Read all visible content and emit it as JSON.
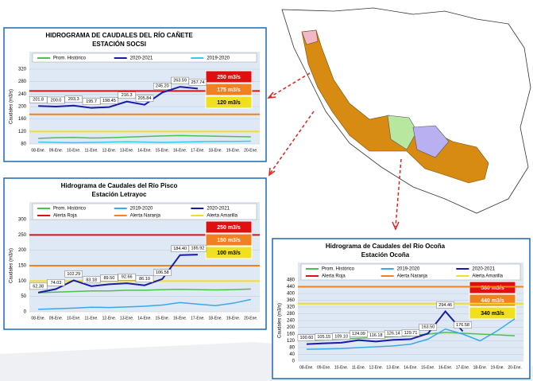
{
  "chart_data": [
    {
      "type": "line",
      "title": "HIDROGRAMA DE CAUDALES DEL RÍO CAÑETE",
      "subtitle": "ESTACIÓN SOCSI",
      "y_label": "Caudales (m3/s)",
      "categories": [
        "08-Ene.",
        "09-Ene.",
        "10-Ene.",
        "11-Ene.",
        "12-Ene.",
        "13-Ene.",
        "14-Ene.",
        "15-Ene.",
        "16-Ene.",
        "17-Ene.",
        "18-Ene.",
        "19-Ene.",
        "20-Ene."
      ],
      "ylim": [
        80,
        320
      ],
      "yticks": [
        80,
        120,
        160,
        200,
        240,
        280,
        320
      ],
      "grid": true,
      "series": [
        {
          "name": "Prom. Histórico",
          "color": "#4cc04c",
          "values": [
            98,
            100,
            101,
            99,
            100,
            102,
            104,
            106,
            107,
            106,
            105,
            104,
            103
          ]
        },
        {
          "name": "2020-2021",
          "color": "#1a1aa8",
          "values": [
            201.8,
            200.0,
            203.3,
            195.7,
            198.45,
            216.3,
            205.84,
            245.2,
            263.59,
            257.74,
            null,
            null,
            null
          ],
          "value_labels": [
            "201.8",
            "200.0",
            "203.3",
            "195.7",
            "198.45",
            "216.3",
            "205.84",
            "245.20",
            "263.59",
            "257.74",
            null,
            null,
            null
          ]
        },
        {
          "name": "2019-2020",
          "color": "#38c8e8",
          "values": [
            86,
            85,
            84,
            85,
            86,
            87,
            86,
            85,
            86,
            87,
            88,
            88,
            89
          ]
        }
      ],
      "thresholds": [
        {
          "value": 250,
          "label": "250 m3/s",
          "color": "#e01010"
        },
        {
          "value": 175,
          "label": "175 m3/s",
          "color": "#f08020"
        },
        {
          "value": 120,
          "label": "120 m3/s",
          "color": "#f0e020"
        }
      ]
    },
    {
      "type": "line",
      "title": "Hidrograma de Caudales del Río Pisco",
      "subtitle": "Estación Letrayoc",
      "y_label": "Caudales (m3/s)",
      "categories": [
        "08-Ene.",
        "09-Ene.",
        "10-Ene.",
        "11-Ene.",
        "12-Ene.",
        "13-Ene.",
        "14-Ene.",
        "15-Ene.",
        "16-Ene.",
        "17-Ene.",
        "18-Ene.",
        "19-Ene.",
        "20-Ene."
      ],
      "ylim": [
        0,
        300
      ],
      "yticks": [
        0,
        50,
        100,
        150,
        200,
        250,
        300
      ],
      "grid": true,
      "series": [
        {
          "name": "Prom. Histórico",
          "color": "#4cc04c",
          "values": [
            62,
            64,
            66,
            68,
            68,
            70,
            70,
            72,
            73,
            72,
            71,
            72,
            74
          ]
        },
        {
          "name": "2019-2020",
          "color": "#38a8e8",
          "values": [
            8,
            10,
            12,
            15,
            14,
            16,
            18,
            22,
            30,
            25,
            20,
            28,
            40
          ]
        },
        {
          "name": "2020-2021",
          "color": "#1a1aa8",
          "values": [
            62.38,
            74.03,
            102.29,
            83.18,
            89.5,
            92.66,
            86.1,
            106.58,
            184.4,
            185.92,
            null,
            null,
            null
          ],
          "value_labels": [
            "62.38",
            "74.03",
            "102.29",
            "83.18",
            "89.50",
            "92.66",
            "86.10",
            "106.58",
            "184.40",
            "185.92",
            null,
            null,
            null
          ]
        }
      ],
      "thresholds": [
        {
          "name": "Alerta Roja",
          "value": 250,
          "label": "250 m3/s",
          "color": "#e01010"
        },
        {
          "name": "Alerta Naranja",
          "value": 150,
          "label": "150 m3/s",
          "color": "#f08020"
        },
        {
          "name": "Alerta Amarilla",
          "value": 100,
          "label": "100 m3/s",
          "color": "#f0e020"
        }
      ]
    },
    {
      "type": "line",
      "title": "Hidrograma de Caudales del Río Ocoña",
      "subtitle": "Estación Ocoña",
      "y_label": "Caudales (m3/s)",
      "categories": [
        "08-Ene.",
        "09-Ene.",
        "10-Ene.",
        "11-Ene.",
        "12-Ene.",
        "13-Ene.",
        "14-Ene.",
        "15-Ene.",
        "16-Ene.",
        "17-Ene.",
        "18-Ene.",
        "19-Ene.",
        "20-Ene."
      ],
      "ylim": [
        0,
        480
      ],
      "yticks": [
        0,
        40,
        80,
        120,
        160,
        200,
        240,
        280,
        320,
        360,
        400,
        440,
        480
      ],
      "grid": true,
      "series": [
        {
          "name": "Prom. Histórico",
          "color": "#4cc04c",
          "values": [
            120,
            125,
            130,
            135,
            140,
            145,
            150,
            160,
            170,
            165,
            160,
            155,
            150
          ]
        },
        {
          "name": "2019-2020",
          "color": "#38a8e8",
          "values": [
            70,
            72,
            74,
            80,
            85,
            90,
            100,
            130,
            190,
            160,
            120,
            180,
            250
          ]
        },
        {
          "name": "2020-2021",
          "color": "#1a1aa8",
          "values": [
            100.6,
            105.15,
            109.1,
            124.09,
            116.18,
            126.14,
            129.71,
            163.5,
            294.46,
            176.58,
            null,
            null,
            null
          ],
          "value_labels": [
            "100.60",
            "105.15",
            "109.10",
            "124.09",
            "116.18",
            "126.14",
            "129.71",
            "163.50",
            "294.46",
            "176.58",
            null,
            null,
            null
          ]
        }
      ],
      "thresholds": [
        {
          "name": "Alerta Roja",
          "value": 580,
          "label": "580 m3/s",
          "color": "#e01010"
        },
        {
          "name": "Alerta Naranja",
          "value": 440,
          "label": "440 m3/s",
          "color": "#f08020"
        },
        {
          "name": "Alerta Amarilla",
          "value": 340,
          "label": "340 m3/s",
          "color": "#f0e020"
        }
      ]
    }
  ]
}
